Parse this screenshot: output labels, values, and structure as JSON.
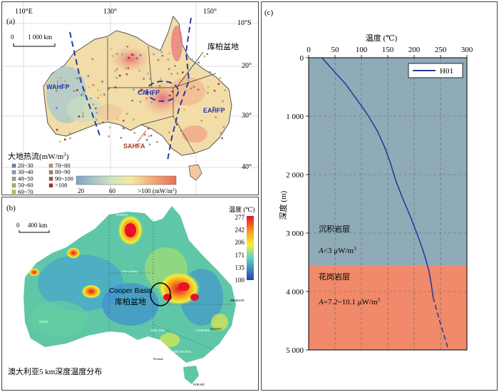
{
  "panel_a": {
    "label": "(a)",
    "lon_labels": [
      "110°E",
      "130°",
      "150°"
    ],
    "lat_labels": [
      "10°S",
      "20°",
      "30°",
      "40°"
    ],
    "scale_label": "1 000 km",
    "scale_zero": "0",
    "basin_label": "库柏盆地",
    "regions": [
      "WAHFP",
      "CAHFP",
      "EAHFP",
      "SAHFA"
    ],
    "legend_title": "大地热流(mW/m",
    "legend_title_sup": "2",
    "legend_title_end": ")",
    "legend_items": [
      {
        "label": "20~30",
        "color": "#6e7fa8"
      },
      {
        "label": "30~40",
        "color": "#8da0b0"
      },
      {
        "label": "40~50",
        "color": "#98a878"
      },
      {
        "label": "50~60",
        "color": "#b8b060"
      },
      {
        "label": "60~70",
        "color": "#d4c048"
      },
      {
        "label": "70~80",
        "color": "#c89860"
      },
      {
        "label": "80~90",
        "color": "#c07850"
      },
      {
        "label": "90~100",
        "color": "#b05040"
      },
      {
        "label": ">100",
        "color": "#a03020"
      }
    ],
    "colorbar": {
      "min_label": "20",
      "mid_label": "60",
      "max_label": ">100 (mW/m",
      "max_sup": "2",
      "max_end": ")"
    }
  },
  "panel_b": {
    "label": "(b)",
    "scale_label": "400 km",
    "scale_zero": "0",
    "basin_en": "Cooper Basin",
    "basin_cn": "库柏盆地",
    "cities": [
      "DARWIN",
      "Alice Springs",
      "BRISBANE",
      "PERTH",
      "ADELAIDE",
      "CANBERRA",
      "SYDNEY",
      "MELBOURNE",
      "Portland",
      "HOBART"
    ],
    "colorbar_title": "温度 (℃)",
    "colorbar_ticks": [
      "277",
      "242",
      "206",
      "171",
      "135",
      "100"
    ],
    "caption": "澳大利亚5 km深度温度分布"
  },
  "panel_c": {
    "label": "(c)",
    "x_title": "温度 (℃)",
    "y_title": "深度 (m)",
    "legend": "H01",
    "layer1_name": "沉积岩层",
    "layer1_a": "A",
    "layer1_val": "<3 μW/m",
    "layer1_sup": "3",
    "layer2_name": "花岗岩层",
    "layer2_a": "A",
    "layer2_val": "=7.2~10.1 μW/m",
    "layer2_sup": "3",
    "colors": {
      "sediment": "#8fabb8",
      "granite": "#f08a6a",
      "curve": "#2b3a9c"
    }
  },
  "chart_data": {
    "type": "line",
    "x_label": "温度 (℃)",
    "y_label": "深度 (m)",
    "x_ticks": [
      0,
      50,
      100,
      150,
      200,
      250,
      300
    ],
    "y_ticks": [
      0,
      1000,
      2000,
      3000,
      4000,
      5000
    ],
    "y_tick_labels": [
      "0",
      "1 000",
      "2 000",
      "3 000",
      "4 000",
      "5 000"
    ],
    "xlim": [
      0,
      300
    ],
    "ylim": [
      0,
      5000
    ],
    "grid": true,
    "legend_position": "top-right",
    "series": [
      {
        "name": "H01",
        "x": [
          25,
          35,
          50,
          70,
          90,
          110,
          130,
          145,
          155,
          165,
          178,
          192,
          205,
          215,
          222,
          228,
          232,
          236
        ],
        "y": [
          0,
          100,
          250,
          450,
          700,
          950,
          1250,
          1550,
          1800,
          2100,
          2400,
          2700,
          3000,
          3250,
          3450,
          3650,
          3850,
          4100
        ]
      },
      {
        "name": "extrapolated",
        "x": [
          236,
          245,
          255,
          265
        ],
        "y": [
          4100,
          4400,
          4700,
          5000
        ]
      }
    ]
  }
}
